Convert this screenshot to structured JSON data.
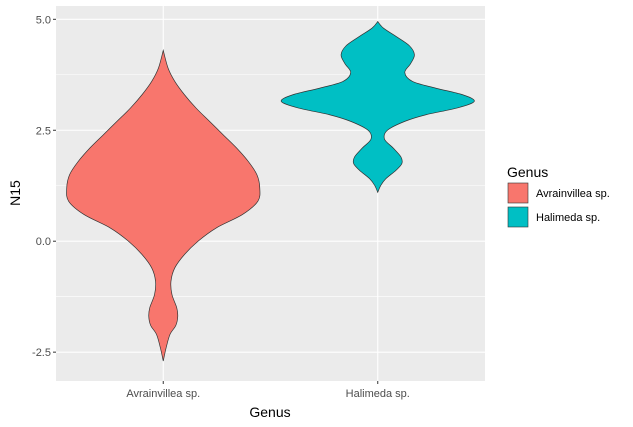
{
  "chart_data": {
    "type": "violin",
    "title": "",
    "xlabel": "Genus",
    "ylabel": "N15",
    "ylim": [
      -3.15,
      5.3
    ],
    "yticks": [
      -2.5,
      0.0,
      2.5,
      5.0
    ],
    "ytick_labels": [
      "-2.5",
      "0.0",
      "2.5",
      "5.0"
    ],
    "categories": [
      "Avrainvillea sp.",
      "Halimeda sp."
    ],
    "grid": true,
    "legend": {
      "title": "Genus",
      "placement": "right",
      "entries": [
        "Avrainvillea sp.",
        "Halimeda sp."
      ]
    },
    "colors": {
      "Avrainvillea sp.": "#F8766D",
      "Halimeda sp.": "#00BFC4",
      "panel": "#EBEBEB",
      "grid": "#FFFFFF",
      "outline": "#333333"
    },
    "series": [
      {
        "name": "Avrainvillea sp.",
        "y_min": -2.7,
        "y_max": 4.3,
        "density_profile": [
          [
            4.3,
            0.0
          ],
          [
            3.9,
            0.05
          ],
          [
            3.6,
            0.12
          ],
          [
            3.3,
            0.22
          ],
          [
            3.0,
            0.34
          ],
          [
            2.7,
            0.48
          ],
          [
            2.4,
            0.62
          ],
          [
            2.1,
            0.76
          ],
          [
            1.8,
            0.88
          ],
          [
            1.5,
            0.97
          ],
          [
            1.2,
            1.0
          ],
          [
            0.9,
            0.98
          ],
          [
            0.6,
            0.82
          ],
          [
            0.3,
            0.55
          ],
          [
            0.0,
            0.36
          ],
          [
            -0.3,
            0.22
          ],
          [
            -0.6,
            0.12
          ],
          [
            -0.9,
            0.08
          ],
          [
            -1.2,
            0.09
          ],
          [
            -1.5,
            0.14
          ],
          [
            -1.7,
            0.15
          ],
          [
            -1.9,
            0.13
          ],
          [
            -2.1,
            0.07
          ],
          [
            -2.4,
            0.03
          ],
          [
            -2.7,
            0.0
          ]
        ]
      },
      {
        "name": "Halimeda sp.",
        "y_min": 1.1,
        "y_max": 4.95,
        "density_profile": [
          [
            4.95,
            0.0
          ],
          [
            4.8,
            0.06
          ],
          [
            4.6,
            0.2
          ],
          [
            4.4,
            0.33
          ],
          [
            4.2,
            0.38
          ],
          [
            4.0,
            0.34
          ],
          [
            3.8,
            0.28
          ],
          [
            3.6,
            0.36
          ],
          [
            3.45,
            0.6
          ],
          [
            3.3,
            0.88
          ],
          [
            3.15,
            1.0
          ],
          [
            3.0,
            0.82
          ],
          [
            2.85,
            0.5
          ],
          [
            2.7,
            0.28
          ],
          [
            2.5,
            0.1
          ],
          [
            2.3,
            0.07
          ],
          [
            2.1,
            0.16
          ],
          [
            1.9,
            0.24
          ],
          [
            1.75,
            0.25
          ],
          [
            1.6,
            0.19
          ],
          [
            1.4,
            0.08
          ],
          [
            1.25,
            0.03
          ],
          [
            1.1,
            0.0
          ]
        ]
      }
    ]
  }
}
